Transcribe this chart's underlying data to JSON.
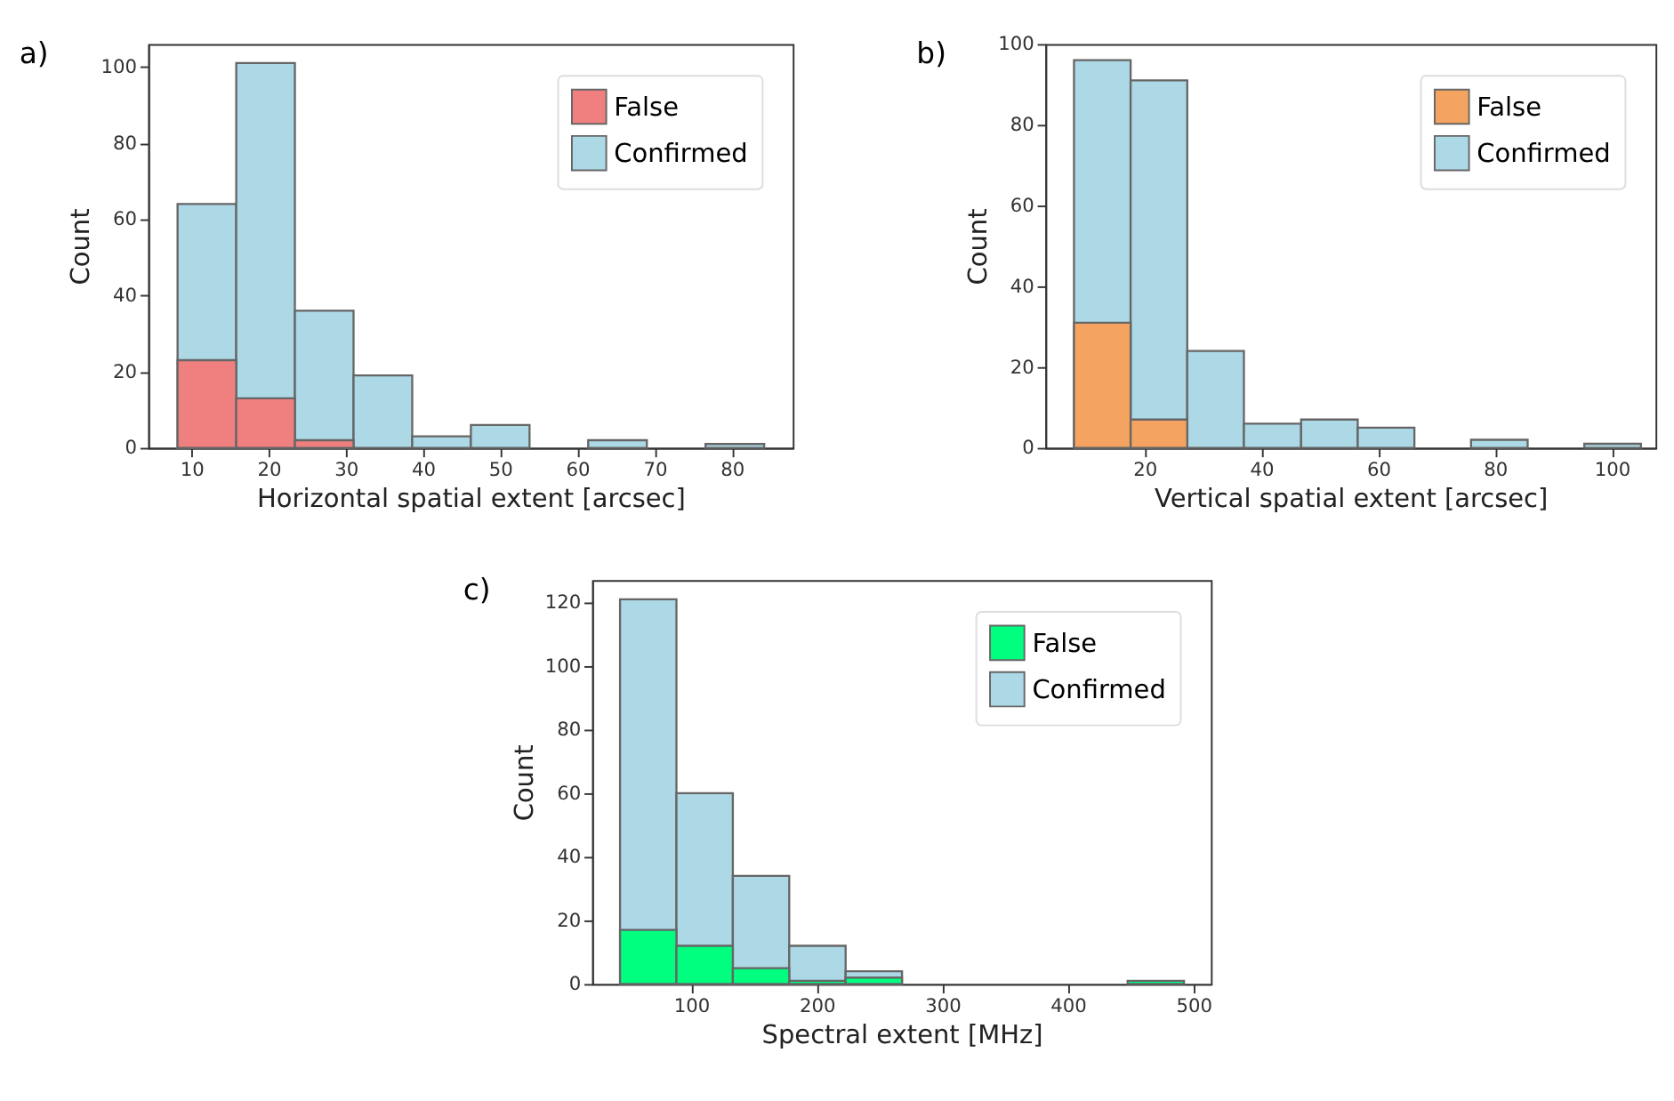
{
  "chart_data": [
    {
      "type": "histogram",
      "annotations": [
        "a)"
      ],
      "xlabel": "Horizontal spatial extent [arcsec]",
      "ylabel": "Count",
      "bins": [
        8.2,
        15.8,
        23.4,
        31.0,
        38.6,
        46.2,
        53.8,
        61.4,
        69.0,
        76.6,
        84.2
      ],
      "series": [
        {
          "name": "False",
          "color": "#f08080",
          "values": [
            23,
            13,
            2,
            null,
            null,
            null,
            null,
            null,
            null,
            null
          ]
        },
        {
          "name": "Confirmed",
          "color": "#add8e6",
          "values": [
            64,
            101,
            36,
            19,
            3,
            6,
            null,
            2,
            null,
            1
          ]
        }
      ],
      "xlim": [
        4.4,
        87.9
      ],
      "xticks": [
        10,
        20,
        30,
        40,
        50,
        60,
        70,
        80
      ],
      "ylim": [
        0,
        106
      ],
      "yticks": [
        0,
        20,
        40,
        60,
        80,
        100
      ],
      "grid": false,
      "legend": "top right"
    },
    {
      "type": "histogram",
      "annotations": [
        "b)"
      ],
      "xlabel": "Vertical spatial extent [arcsec]",
      "ylabel": "Count",
      "bins": [
        7.9,
        17.6,
        27.3,
        37.0,
        46.8,
        56.5,
        66.2,
        75.9,
        85.6,
        95.3,
        105.0
      ],
      "series": [
        {
          "name": "False",
          "color": "#f4a460",
          "values": [
            31,
            7,
            null,
            null,
            null,
            null,
            null,
            null,
            null,
            null
          ]
        },
        {
          "name": "Confirmed",
          "color": "#add8e6",
          "values": [
            96,
            91,
            24,
            6,
            7,
            5,
            null,
            2,
            null,
            1
          ]
        }
      ],
      "xlim": [
        3.0,
        107.5
      ],
      "xticks": [
        20,
        40,
        60,
        80,
        100
      ],
      "ylim": [
        0,
        100
      ],
      "yticks": [
        0,
        20,
        40,
        60,
        80,
        100
      ],
      "grid": false,
      "legend": "top right"
    },
    {
      "type": "histogram",
      "annotations": [
        "c)"
      ],
      "xlabel": "Spectral extent [MHz]",
      "ylabel": "Count",
      "bins": [
        43.4,
        88.3,
        133.2,
        178.1,
        223.0,
        267.9,
        312.8,
        357.7,
        402.6,
        447.5,
        492.4
      ],
      "series": [
        {
          "name": "False",
          "color": "#00ff7f",
          "values": [
            17,
            12,
            5,
            1,
            2,
            null,
            null,
            null,
            null,
            1
          ]
        },
        {
          "name": "Confirmed",
          "color": "#add8e6",
          "values": [
            121,
            60,
            34,
            12,
            4,
            null,
            null,
            null,
            null,
            null
          ]
        }
      ],
      "xlim": [
        21.2,
        513.8
      ],
      "xticks": [
        100,
        200,
        300,
        400,
        500
      ],
      "ylim": [
        0,
        127
      ],
      "yticks": [
        0,
        20,
        40,
        60,
        80,
        100,
        120
      ],
      "grid": false,
      "legend": "top right"
    }
  ]
}
